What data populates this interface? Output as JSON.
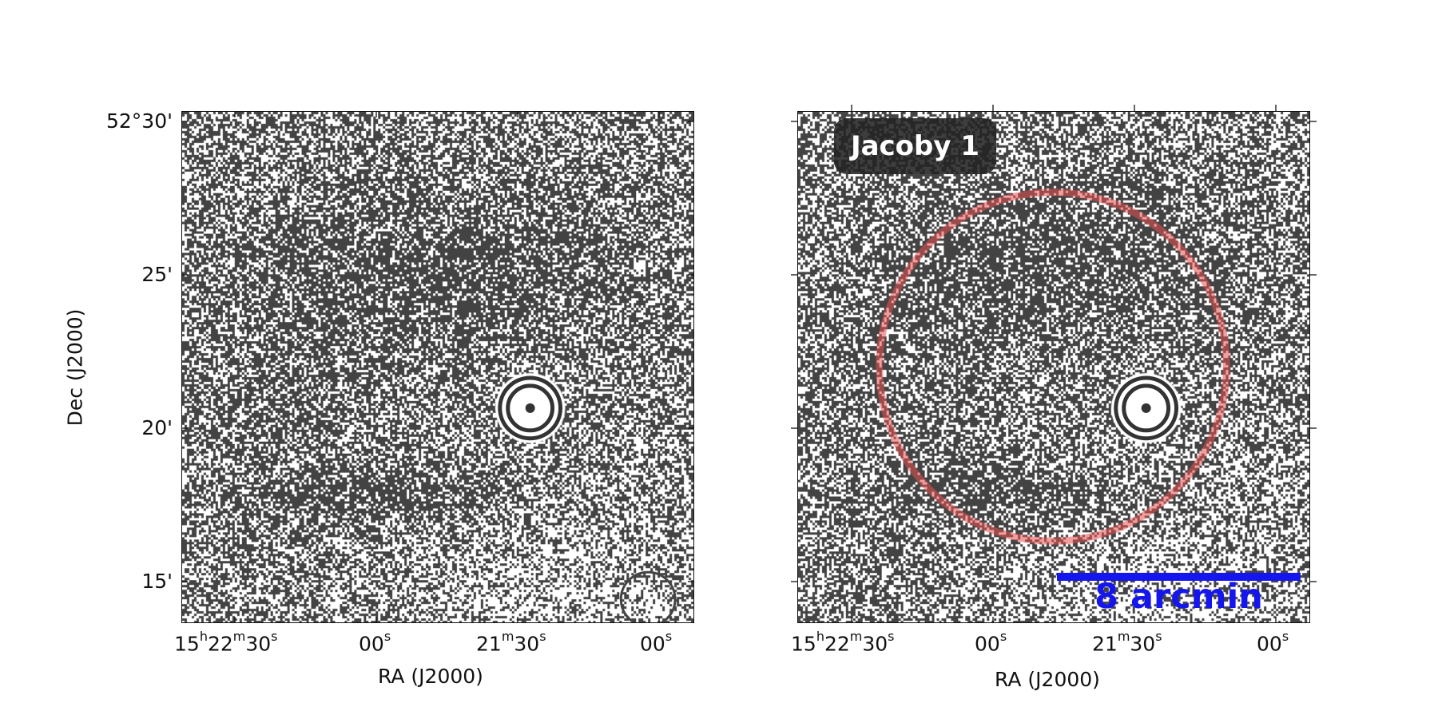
{
  "figure": {
    "left_panel": {
      "x_ticks": [
        {
          "h": "15",
          "m": "22",
          "s": "30",
          "prefix": true
        },
        {
          "s": "00"
        },
        {
          "m": "21",
          "s": "30",
          "prefix": false
        },
        {
          "s": "00"
        }
      ],
      "y_ticks": [
        "52°30'",
        "25'",
        "20'",
        "15'"
      ],
      "xlabel": "RA (J2000)",
      "ylabel": "Dec (J2000)"
    },
    "right_panel": {
      "x_ticks": [
        {
          "h": "15",
          "m": "22",
          "s": "30",
          "prefix": true
        },
        {
          "s": "00"
        },
        {
          "m": "21",
          "s": "30",
          "prefix": false
        },
        {
          "s": "00"
        }
      ],
      "xlabel": "RA (J2000)",
      "object_label": "Jacoby 1",
      "scalebar_label": "8 arcmin"
    },
    "colors": {
      "image_dark": "#434343",
      "image_light": "#ffffff",
      "circle_overlay": "#e85050",
      "scalebar": "#1515ee",
      "label_box": "#232323"
    }
  }
}
